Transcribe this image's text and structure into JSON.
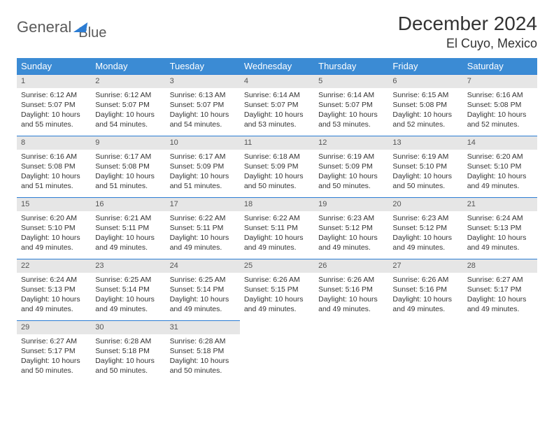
{
  "brand": {
    "word1": "General",
    "word2": "Blue"
  },
  "title": "December 2024",
  "location": "El Cuyo, Mexico",
  "colors": {
    "header_bg": "#3b8bd4",
    "header_text": "#ffffff",
    "daynum_bg": "#e6e6e6",
    "daynum_text": "#555555",
    "rule": "#2b7cd3",
    "body_text": "#333333",
    "logo_gray": "#5a5a5a",
    "logo_blue": "#2b7cd3"
  },
  "weekdays": [
    "Sunday",
    "Monday",
    "Tuesday",
    "Wednesday",
    "Thursday",
    "Friday",
    "Saturday"
  ],
  "cells": [
    {
      "n": "1",
      "sr": "6:12 AM",
      "ss": "5:07 PM",
      "dl": "10 hours and 55 minutes."
    },
    {
      "n": "2",
      "sr": "6:12 AM",
      "ss": "5:07 PM",
      "dl": "10 hours and 54 minutes."
    },
    {
      "n": "3",
      "sr": "6:13 AM",
      "ss": "5:07 PM",
      "dl": "10 hours and 54 minutes."
    },
    {
      "n": "4",
      "sr": "6:14 AM",
      "ss": "5:07 PM",
      "dl": "10 hours and 53 minutes."
    },
    {
      "n": "5",
      "sr": "6:14 AM",
      "ss": "5:07 PM",
      "dl": "10 hours and 53 minutes."
    },
    {
      "n": "6",
      "sr": "6:15 AM",
      "ss": "5:08 PM",
      "dl": "10 hours and 52 minutes."
    },
    {
      "n": "7",
      "sr": "6:16 AM",
      "ss": "5:08 PM",
      "dl": "10 hours and 52 minutes."
    },
    {
      "n": "8",
      "sr": "6:16 AM",
      "ss": "5:08 PM",
      "dl": "10 hours and 51 minutes."
    },
    {
      "n": "9",
      "sr": "6:17 AM",
      "ss": "5:08 PM",
      "dl": "10 hours and 51 minutes."
    },
    {
      "n": "10",
      "sr": "6:17 AM",
      "ss": "5:09 PM",
      "dl": "10 hours and 51 minutes."
    },
    {
      "n": "11",
      "sr": "6:18 AM",
      "ss": "5:09 PM",
      "dl": "10 hours and 50 minutes."
    },
    {
      "n": "12",
      "sr": "6:19 AM",
      "ss": "5:09 PM",
      "dl": "10 hours and 50 minutes."
    },
    {
      "n": "13",
      "sr": "6:19 AM",
      "ss": "5:10 PM",
      "dl": "10 hours and 50 minutes."
    },
    {
      "n": "14",
      "sr": "6:20 AM",
      "ss": "5:10 PM",
      "dl": "10 hours and 49 minutes."
    },
    {
      "n": "15",
      "sr": "6:20 AM",
      "ss": "5:10 PM",
      "dl": "10 hours and 49 minutes."
    },
    {
      "n": "16",
      "sr": "6:21 AM",
      "ss": "5:11 PM",
      "dl": "10 hours and 49 minutes."
    },
    {
      "n": "17",
      "sr": "6:22 AM",
      "ss": "5:11 PM",
      "dl": "10 hours and 49 minutes."
    },
    {
      "n": "18",
      "sr": "6:22 AM",
      "ss": "5:11 PM",
      "dl": "10 hours and 49 minutes."
    },
    {
      "n": "19",
      "sr": "6:23 AM",
      "ss": "5:12 PM",
      "dl": "10 hours and 49 minutes."
    },
    {
      "n": "20",
      "sr": "6:23 AM",
      "ss": "5:12 PM",
      "dl": "10 hours and 49 minutes."
    },
    {
      "n": "21",
      "sr": "6:24 AM",
      "ss": "5:13 PM",
      "dl": "10 hours and 49 minutes."
    },
    {
      "n": "22",
      "sr": "6:24 AM",
      "ss": "5:13 PM",
      "dl": "10 hours and 49 minutes."
    },
    {
      "n": "23",
      "sr": "6:25 AM",
      "ss": "5:14 PM",
      "dl": "10 hours and 49 minutes."
    },
    {
      "n": "24",
      "sr": "6:25 AM",
      "ss": "5:14 PM",
      "dl": "10 hours and 49 minutes."
    },
    {
      "n": "25",
      "sr": "6:26 AM",
      "ss": "5:15 PM",
      "dl": "10 hours and 49 minutes."
    },
    {
      "n": "26",
      "sr": "6:26 AM",
      "ss": "5:16 PM",
      "dl": "10 hours and 49 minutes."
    },
    {
      "n": "27",
      "sr": "6:26 AM",
      "ss": "5:16 PM",
      "dl": "10 hours and 49 minutes."
    },
    {
      "n": "28",
      "sr": "6:27 AM",
      "ss": "5:17 PM",
      "dl": "10 hours and 49 minutes."
    },
    {
      "n": "29",
      "sr": "6:27 AM",
      "ss": "5:17 PM",
      "dl": "10 hours and 50 minutes."
    },
    {
      "n": "30",
      "sr": "6:28 AM",
      "ss": "5:18 PM",
      "dl": "10 hours and 50 minutes."
    },
    {
      "n": "31",
      "sr": "6:28 AM",
      "ss": "5:18 PM",
      "dl": "10 hours and 50 minutes."
    },
    {
      "empty": true
    },
    {
      "empty": true
    },
    {
      "empty": true
    },
    {
      "empty": true
    }
  ],
  "labels": {
    "sunrise": "Sunrise:",
    "sunset": "Sunset:",
    "daylight": "Daylight:"
  }
}
